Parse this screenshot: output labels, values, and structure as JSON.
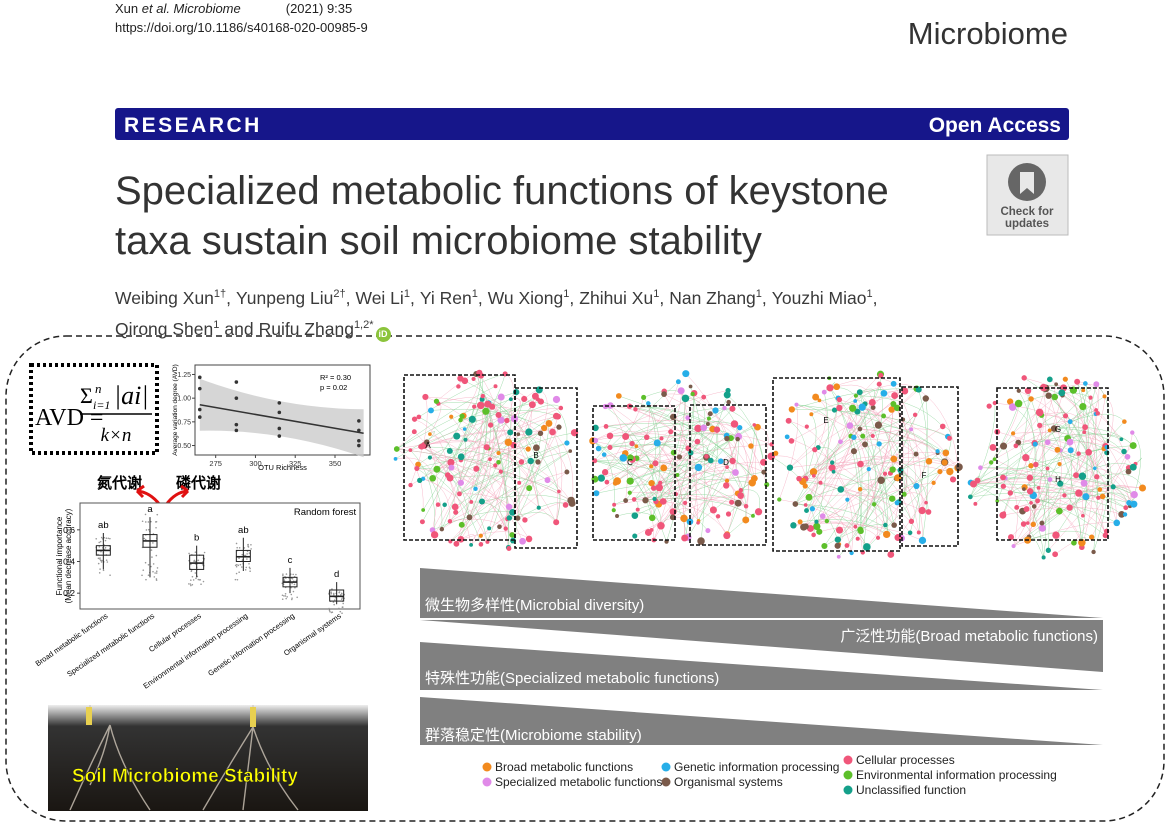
{
  "header": {
    "citation_author": "Xun",
    "citation_journal": "et al. Microbiome",
    "citation_issue": "(2021) 9:35",
    "doi": "https://doi.org/10.1186/s40168-020-00985-9",
    "journal": "Microbiome"
  },
  "banner": {
    "article_type": "RESEARCH",
    "access": "Open Access"
  },
  "title_lines": [
    "Specialized metabolic functions of keystone",
    "taxa sustain soil microbiome stability"
  ],
  "check_updates": [
    "Check for",
    "updates"
  ],
  "authors": [
    {
      "name": "Weibing Xun",
      "aff": "1†"
    },
    {
      "name": "Yunpeng Liu",
      "aff": "2†"
    },
    {
      "name": "Wei Li",
      "aff": "1"
    },
    {
      "name": "Yi Ren",
      "aff": "1"
    },
    {
      "name": "Wu Xiong",
      "aff": "1"
    },
    {
      "name": "Zhihui Xu",
      "aff": "1"
    },
    {
      "name": "Nan Zhang",
      "aff": "1"
    },
    {
      "name": "Youzhi Miao",
      "aff": "1"
    },
    {
      "name": "Qirong Shen",
      "aff": "1"
    },
    {
      "name": "Ruifu Zhang",
      "aff": "1,2*"
    }
  ],
  "author_separator": ",",
  "author_conjunction": "and",
  "orcid": "iD",
  "graphical_abstract": {
    "formula": {
      "lhs": "AVD",
      "equals": "=",
      "sum": "Σ",
      "lower": "i=1",
      "upper": "n",
      "numerator": "|ai|",
      "denominator": "k×n"
    },
    "scatter": {
      "xlabel": "OTU Richness",
      "ylabel": "Average variation degree (AVD)",
      "xlim": [
        262,
        372
      ],
      "ylim": [
        0.4,
        1.35
      ],
      "xticks": [
        275,
        300,
        325,
        350
      ],
      "yticks": [
        {
          "value": 0.5,
          "label": "0.50"
        },
        0.75,
        {
          "value": 1.0,
          "label": "1.00"
        },
        1.25
      ],
      "stats": [
        "R² = 0.30",
        "p = 0.02"
      ],
      "points": {
        "x": [
          265,
          265,
          265,
          265,
          288,
          288,
          288,
          288,
          315,
          315,
          315,
          315,
          365,
          365,
          365,
          365
        ],
        "y": [
          1.22,
          1.1,
          0.88,
          0.8,
          1.17,
          1.0,
          0.72,
          0.66,
          0.95,
          0.85,
          0.68,
          0.6,
          0.76,
          0.66,
          0.55,
          0.5
        ]
      },
      "trend": {
        "x": [
          265,
          368
        ],
        "y": [
          0.93,
          0.63
        ]
      }
    },
    "metabolism_labels": [
      "氮代谢",
      "磷代谢"
    ],
    "boxplot": {
      "title": "Random forest",
      "ylabel": [
        "Functional importance",
        "(Mean decrease accuracy)"
      ],
      "ylim": [
        0.1,
        0.7
      ],
      "yticks": [
        0.2,
        0.4,
        0.6
      ],
      "categories": [
        "Broad metabolic functions",
        "Specialized metabolic functions",
        "Cellular processes",
        "Environmental information processing",
        "Genetic information processing",
        "Organismal systems"
      ],
      "letters": [
        "ab",
        "a",
        "b",
        "ab",
        "c",
        "d"
      ],
      "min": [
        0.35,
        0.3,
        0.3,
        0.34,
        0.2,
        0.13
      ],
      "q1": [
        0.44,
        0.49,
        0.35,
        0.4,
        0.24,
        0.15
      ],
      "median": [
        0.47,
        0.53,
        0.39,
        0.43,
        0.27,
        0.18
      ],
      "q3": [
        0.5,
        0.57,
        0.44,
        0.47,
        0.3,
        0.22
      ],
      "max": [
        0.58,
        0.68,
        0.5,
        0.55,
        0.36,
        0.27
      ]
    },
    "soil_label": "Soil Microbiome Stability",
    "network_labels": [
      "A",
      "B",
      "C",
      "D",
      "E",
      "F",
      "G",
      "H"
    ],
    "gradients": [
      "微生物多样性(Microbial diversity)",
      "广泛性功能(Broad metabolic functions)",
      "特殊性功能(Specialized metabolic functions)",
      "群落稳定性(Microbiome stability)"
    ],
    "legend": [
      {
        "name": "Broad metabolic functions",
        "color": "#f28a1e"
      },
      {
        "name": "Specialized metabolic functions",
        "color": "#e08ae8"
      },
      {
        "name": "Genetic information processing",
        "color": "#27aee8"
      },
      {
        "name": "Organismal systems",
        "color": "#7a5a4a"
      },
      {
        "name": "Cellular processes",
        "color": "#f0567a"
      },
      {
        "name": "Environmental information processing",
        "color": "#5cbf2a"
      },
      {
        "name": "Unclassified function",
        "color": "#14a08a"
      }
    ]
  }
}
